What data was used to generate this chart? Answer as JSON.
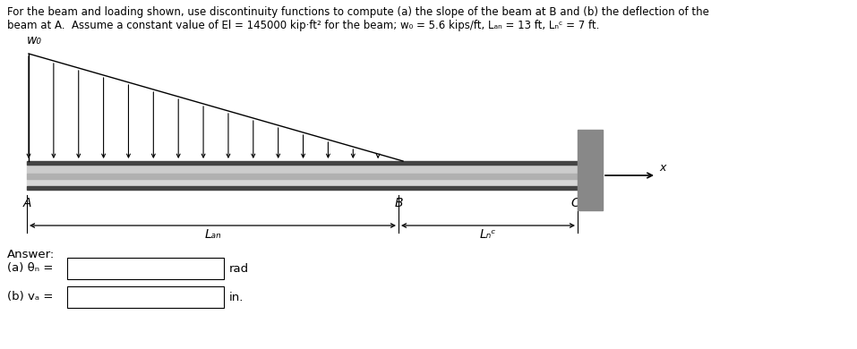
{
  "title_line1": "For the beam and loading shown, use discontinuity functions to compute (a) the slope of the beam at B and (b) the deflection of the",
  "title_line2": "beam at A.  Assume a constant value of El = 145000 kip·ft² for the beam; w₀ = 5.6 kips/ft, Lₐₙ = 13 ft, Lₙᶜ = 7 ft.",
  "wo_label": "w₀",
  "A_label": "A",
  "B_label": "B",
  "C_label": "C",
  "x_label": "x",
  "LAB_label": "Lₐₙ",
  "LBC_label": "Lₙᶜ",
  "answer_label": "Answer:",
  "a_label": "(a) θₙ =",
  "b_label": "(b) vₐ =",
  "rad_label": "rad",
  "in_label": "in.",
  "background": "#ffffff",
  "beam_top_color": "#aaaaaa",
  "beam_mid_color": "#d8d8d8",
  "beam_bot_color": "#888888",
  "wall_color": "#909090",
  "n_arrows": 16
}
